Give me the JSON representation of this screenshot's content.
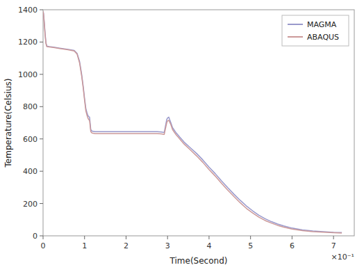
{
  "chart_data": {
    "type": "line",
    "xlabel": "Time(Second)",
    "ylabel": "Temperature(Celsius)",
    "xlim": [
      0,
      0.75
    ],
    "ylim": [
      0,
      1400
    ],
    "xticks": [
      0,
      {
        "value": 0.1,
        "label": "1"
      },
      {
        "value": 0.2,
        "label": "2"
      },
      {
        "value": 0.3,
        "label": "3"
      },
      {
        "value": 0.4,
        "label": "4"
      },
      {
        "value": 0.5,
        "label": "5"
      },
      {
        "value": 0.6,
        "label": "6"
      },
      {
        "value": 0.7,
        "label": "7"
      }
    ],
    "yticks": [
      0,
      200,
      400,
      600,
      800,
      1000,
      1200,
      1400
    ],
    "annotations": [
      "×10⁻¹"
    ],
    "legend": "upper right",
    "grid": false,
    "x": [
      0.0,
      0.001,
      0.003,
      0.005,
      0.007,
      0.009,
      0.015,
      0.025,
      0.04,
      0.06,
      0.075,
      0.082,
      0.088,
      0.093,
      0.097,
      0.1,
      0.103,
      0.106,
      0.108,
      0.11,
      0.112,
      0.115,
      0.118,
      0.125,
      0.14,
      0.16,
      0.18,
      0.2,
      0.22,
      0.24,
      0.26,
      0.275,
      0.285,
      0.292,
      0.298,
      0.3,
      0.303,
      0.305,
      0.308,
      0.312,
      0.32,
      0.33,
      0.34,
      0.355,
      0.37,
      0.385,
      0.4,
      0.415,
      0.43,
      0.445,
      0.46,
      0.475,
      0.49,
      0.505,
      0.52,
      0.535,
      0.55,
      0.565,
      0.58,
      0.6,
      0.625,
      0.65,
      0.7,
      0.72
    ],
    "series": [
      {
        "name": "MAGMA",
        "color": "#9999cc",
        "values": [
          1390,
          1380,
          1320,
          1250,
          1195,
          1175,
          1172,
          1168,
          1162,
          1155,
          1148,
          1130,
          1080,
          1000,
          920,
          850,
          790,
          760,
          745,
          738,
          735,
          658,
          648,
          645,
          645,
          645,
          645,
          645,
          645,
          645,
          645,
          645,
          643,
          640,
          720,
          730,
          735,
          720,
          700,
          670,
          640,
          610,
          580,
          545,
          510,
          470,
          425,
          385,
          340,
          298,
          258,
          220,
          185,
          155,
          128,
          106,
          88,
          73,
          61,
          48,
          37,
          30,
          22,
          20
        ]
      },
      {
        "name": "ABAQUS",
        "color": "#cc9999",
        "values": [
          1390,
          1375,
          1310,
          1240,
          1190,
          1172,
          1170,
          1166,
          1160,
          1152,
          1145,
          1125,
          1070,
          990,
          910,
          840,
          775,
          745,
          730,
          720,
          715,
          645,
          636,
          633,
          633,
          633,
          633,
          633,
          633,
          633,
          633,
          633,
          631,
          628,
          700,
          712,
          715,
          705,
          688,
          658,
          628,
          598,
          568,
          532,
          495,
          455,
          410,
          370,
          325,
          283,
          243,
          205,
          170,
          142,
          116,
          95,
          79,
          65,
          54,
          42,
          32,
          26,
          19,
          17
        ]
      }
    ]
  }
}
